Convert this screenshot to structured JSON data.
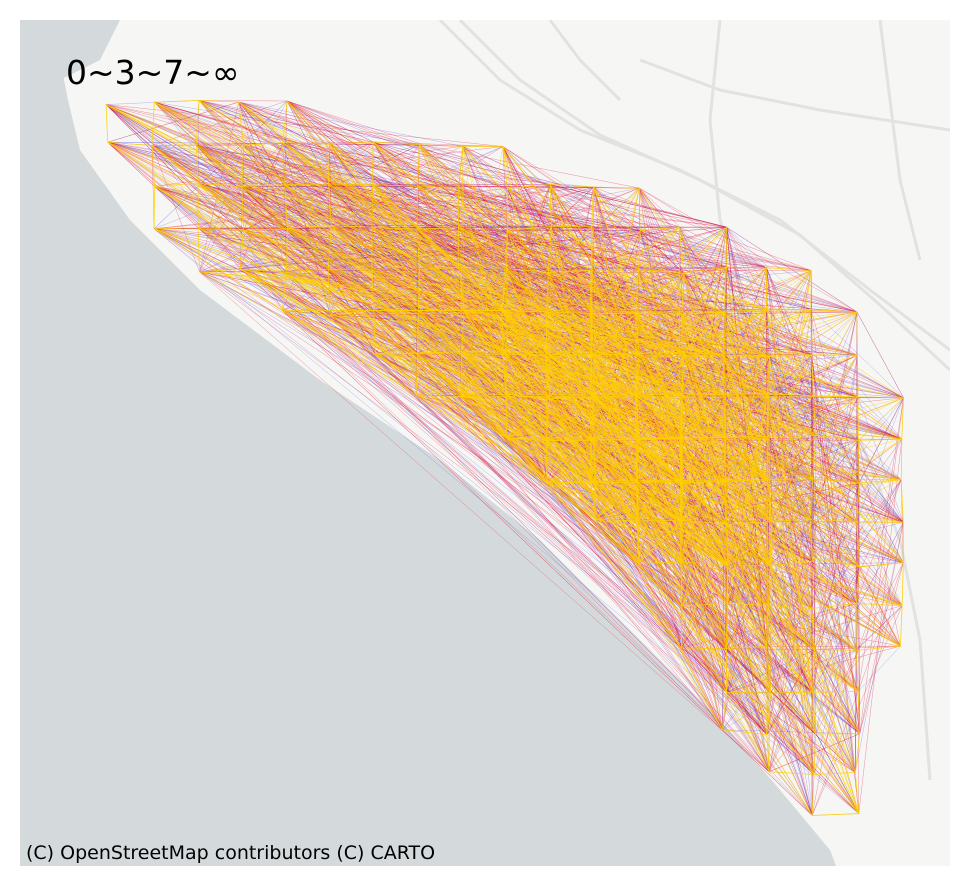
{
  "map": {
    "legend_label": "0~3~7~∞",
    "attribution": "(C) OpenStreetMap contributors (C) CARTO",
    "basemap": "carto-positron",
    "colors": {
      "sea": "#d4dadc",
      "land": "#f6f6f4",
      "road": "#e2e2e2",
      "flow_low": "#3a3ae8",
      "flow_mid": "#e0143c",
      "flow_high": "#ffd000"
    }
  }
}
